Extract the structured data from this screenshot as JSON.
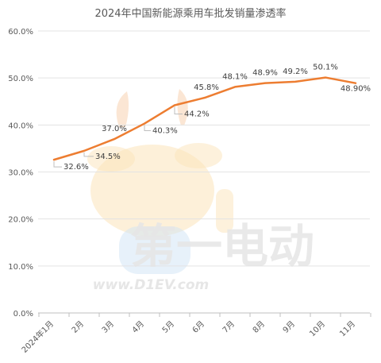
{
  "chart_data": {
    "type": "line",
    "title": "2024年中国新能源乘用车批发销量渗透率",
    "categories": [
      "2024年1月",
      "2月",
      "3月",
      "4月",
      "5月",
      "6月",
      "7月",
      "8月",
      "9月",
      "10月",
      "11月"
    ],
    "series": [
      {
        "values": [
          32.6,
          34.5,
          37.0,
          40.3,
          44.2,
          45.8,
          48.1,
          48.9,
          49.2,
          50.1,
          48.9
        ],
        "labels": [
          "32.6%",
          "34.5%",
          "37.0%",
          "40.3%",
          "44.2%",
          "45.8%",
          "48.1%",
          "48.9%",
          "49.2%",
          "50.1%",
          "48.90%"
        ]
      }
    ],
    "yticks": [
      "0.0%",
      "10.0%",
      "20.0%",
      "30.0%",
      "40.0%",
      "50.0%",
      "60.0%"
    ],
    "ylim": [
      0,
      60
    ],
    "grid": true,
    "line_color": "#ED7D31"
  },
  "watermark": {
    "text_brand": "第一电动",
    "text_url": "www.D1EV.com"
  }
}
